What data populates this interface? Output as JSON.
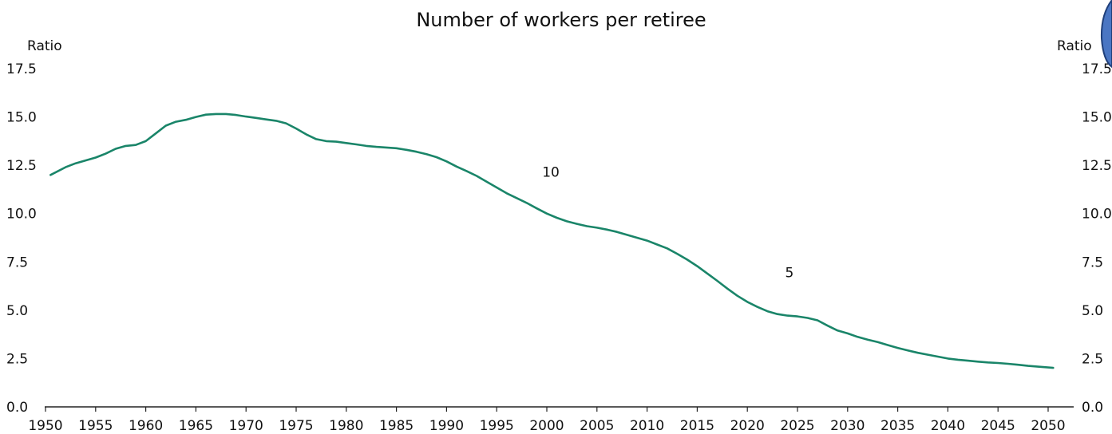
{
  "chart_data": {
    "type": "line",
    "title": "Number of workers per retiree",
    "ylabel_left": "Ratio",
    "ylabel_right": "Ratio",
    "ylim": [
      0,
      17.5
    ],
    "xlim": [
      1950,
      2050
    ],
    "yticks": [
      "0.0",
      "2.5",
      "5.0",
      "7.5",
      "10.0",
      "12.5",
      "15.0",
      "17.5"
    ],
    "xticks": [
      "1950",
      "1955",
      "1960",
      "1965",
      "1970",
      "1975",
      "1980",
      "1985",
      "1990",
      "1995",
      "2000",
      "2005",
      "2010",
      "2015",
      "2020",
      "2025",
      "2030",
      "2035",
      "2040",
      "2045",
      "2050"
    ],
    "grid": false,
    "legend": "none",
    "annotations": [
      {
        "text": "10",
        "x": 2000.4,
        "y": 11.9
      },
      {
        "text": "5",
        "x": 2024.2,
        "y": 6.7
      }
    ],
    "series": [
      {
        "color": "#1a8569",
        "x": [
          1950.5,
          1952,
          1953,
          1955,
          1956,
          1957,
          1958,
          1959,
          1960,
          1961,
          1962,
          1963,
          1964,
          1965,
          1966,
          1967,
          1968,
          1969,
          1970,
          1971,
          1972,
          1973,
          1974,
          1975,
          1976,
          1977,
          1978,
          1979,
          1980,
          1981,
          1982,
          1983,
          1984,
          1985,
          1986,
          1987,
          1988,
          1989,
          1990,
          1991,
          1992,
          1993,
          1994,
          1995,
          1996,
          1997,
          1998,
          1999,
          2000,
          2001,
          2002,
          2003,
          2004,
          2005,
          2006,
          2007,
          2008,
          2009,
          2010,
          2011,
          2012,
          2013,
          2014,
          2015,
          2016,
          2017,
          2018,
          2019,
          2020,
          2021,
          2022,
          2023,
          2024,
          2025,
          2026,
          2027,
          2028,
          2029,
          2030,
          2031,
          2032,
          2033,
          2034,
          2035,
          2036,
          2037,
          2038,
          2039,
          2040,
          2041,
          2042,
          2043,
          2044,
          2045,
          2046,
          2047,
          2048,
          2049,
          2050.5
        ],
        "y": [
          12.0,
          12.4,
          12.6,
          12.9,
          13.1,
          13.35,
          13.5,
          13.55,
          13.75,
          14.15,
          14.55,
          14.75,
          14.85,
          15.0,
          15.12,
          15.15,
          15.15,
          15.1,
          15.02,
          14.95,
          14.87,
          14.8,
          14.67,
          14.4,
          14.1,
          13.85,
          13.75,
          13.72,
          13.65,
          13.58,
          13.5,
          13.45,
          13.42,
          13.38,
          13.3,
          13.2,
          13.07,
          12.92,
          12.7,
          12.43,
          12.2,
          11.95,
          11.65,
          11.35,
          11.05,
          10.8,
          10.55,
          10.27,
          10.0,
          9.78,
          9.6,
          9.47,
          9.35,
          9.27,
          9.17,
          9.05,
          8.9,
          8.75,
          8.6,
          8.4,
          8.2,
          7.92,
          7.62,
          7.28,
          6.9,
          6.52,
          6.12,
          5.75,
          5.43,
          5.17,
          4.95,
          4.8,
          4.72,
          4.68,
          4.6,
          4.48,
          4.2,
          3.95,
          3.8,
          3.62,
          3.48,
          3.35,
          3.2,
          3.05,
          2.92,
          2.8,
          2.7,
          2.6,
          2.5,
          2.44,
          2.39,
          2.34,
          2.3,
          2.27,
          2.23,
          2.18,
          2.12,
          2.08,
          2.02
        ]
      }
    ]
  }
}
